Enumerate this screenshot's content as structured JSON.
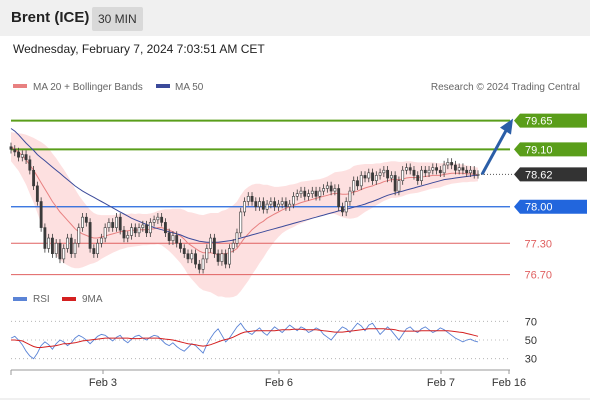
{
  "header": {
    "title": "Brent (ICE)",
    "timeframe": "30 MIN"
  },
  "datetime": "Wednesday, February 7, 2024 7:03:51 AM CET",
  "legend": {
    "ma20_label": "MA 20 + Bollinger Bands",
    "ma50_label": "MA 50",
    "copyright": "Research © 2024 Trading Central",
    "rsi_label": "RSI",
    "rsi_ma_label": "9MA"
  },
  "colors": {
    "candle": "#3a3a3a",
    "bollinger_fill": "#fdd8d8",
    "ma20": "#e88080",
    "ma50": "#3b4a9a",
    "resistance": "#5a9e1a",
    "support": "#2266dd",
    "pivot_red": "#e06060",
    "arrow": "#2b5ea7",
    "current": "#333333",
    "rsi": "#5b84d6",
    "rsi_ma": "#d42020"
  },
  "chart_data": [
    {
      "type": "candlestick",
      "title": "Brent (ICE)",
      "x_tick_labels": [
        "Feb 3",
        "Feb 6",
        "Feb 7",
        "Feb 16"
      ],
      "ylim": [
        76.5,
        79.95
      ],
      "levels": [
        {
          "label": "79.65",
          "value": 79.65,
          "kind": "resistance"
        },
        {
          "label": "79.10",
          "value": 79.1,
          "kind": "resistance"
        },
        {
          "label": "78.62",
          "value": 78.62,
          "kind": "current"
        },
        {
          "label": "78.00",
          "value": 78.0,
          "kind": "support"
        },
        {
          "label": "77.30",
          "value": 77.3,
          "kind": "pivot"
        },
        {
          "label": "76.70",
          "value": 76.7,
          "kind": "pivot"
        }
      ],
      "close": [
        79.1,
        79.05,
        78.95,
        79.0,
        78.9,
        78.7,
        78.4,
        78.1,
        77.6,
        77.2,
        77.4,
        77.1,
        77.3,
        77.0,
        77.2,
        77.4,
        77.1,
        77.3,
        77.6,
        77.8,
        77.7,
        77.2,
        77.1,
        77.3,
        77.4,
        77.6,
        77.7,
        77.6,
        77.8,
        77.55,
        77.4,
        77.45,
        77.6,
        77.5,
        77.6,
        77.65,
        77.5,
        77.7,
        77.75,
        77.8,
        77.7,
        77.5,
        77.35,
        77.45,
        77.3,
        77.2,
        77.1,
        77.0,
        77.1,
        76.9,
        76.8,
        77.0,
        77.2,
        77.4,
        77.1,
        76.95,
        77.1,
        76.9,
        77.2,
        77.3,
        77.5,
        77.9,
        78.1,
        78.2,
        78.1,
        78.0,
        78.1,
        77.95,
        78.05,
        78.1,
        78.0,
        78.05,
        78.1,
        78.0,
        78.05,
        78.2,
        78.25,
        78.3,
        78.2,
        78.25,
        78.3,
        78.2,
        78.3,
        78.35,
        78.4,
        78.3,
        78.35,
        78.0,
        77.9,
        78.1,
        78.3,
        78.5,
        78.4,
        78.6,
        78.55,
        78.65,
        78.5,
        78.6,
        78.65,
        78.7,
        78.55,
        78.6,
        78.3,
        78.5,
        78.7,
        78.75,
        78.7,
        78.6,
        78.5,
        78.7,
        78.65,
        78.7,
        78.75,
        78.7,
        78.65,
        78.8,
        78.85,
        78.8,
        78.7,
        78.75,
        78.7,
        78.65,
        78.7,
        78.62,
        78.62
      ],
      "ma20": [
        79.15,
        79.1,
        79.05,
        78.98,
        78.9,
        78.8,
        78.7,
        78.58,
        78.46,
        78.34,
        78.22,
        78.1,
        78.0,
        77.9,
        77.82,
        77.74,
        77.66,
        77.58,
        77.52,
        77.48,
        77.45,
        77.42,
        77.4,
        77.4,
        77.42,
        77.44,
        77.46,
        77.48,
        77.5,
        77.52,
        77.53,
        77.54,
        77.55,
        77.55,
        77.56,
        77.56,
        77.56,
        77.57,
        77.58,
        77.6,
        77.6,
        77.58,
        77.55,
        77.52,
        77.48,
        77.44,
        77.38,
        77.3,
        77.25,
        77.2,
        77.15,
        77.12,
        77.12,
        77.12,
        77.1,
        77.08,
        77.1,
        77.1,
        77.12,
        77.15,
        77.2,
        77.3,
        77.4,
        77.48,
        77.56,
        77.62,
        77.68,
        77.72,
        77.78,
        77.82,
        77.86,
        77.9,
        77.94,
        77.97,
        78.0,
        78.02,
        78.05,
        78.08,
        78.1,
        78.12,
        78.14,
        78.16,
        78.18,
        78.2,
        78.22,
        78.24,
        78.26,
        78.25,
        78.24,
        78.24,
        78.25,
        78.28,
        78.3,
        78.33,
        78.36,
        78.38,
        78.4,
        78.43,
        78.45,
        78.48,
        78.5,
        78.52,
        78.52,
        78.52,
        78.53,
        78.55,
        78.56,
        78.56,
        78.56,
        78.57,
        78.58,
        78.59,
        78.6,
        78.6,
        78.6,
        78.62,
        78.63,
        78.64,
        78.64,
        78.64,
        78.64,
        78.63,
        78.63,
        78.62,
        78.62
      ],
      "ma50": [
        79.5,
        79.45,
        79.38,
        79.3,
        79.22,
        79.15,
        79.08,
        79.0,
        78.94,
        78.88,
        78.82,
        78.76,
        78.7,
        78.64,
        78.58,
        78.52,
        78.46,
        78.4,
        78.35,
        78.3,
        78.26,
        78.22,
        78.18,
        78.14,
        78.1,
        78.06,
        78.02,
        77.98,
        77.94,
        77.9,
        77.86,
        77.82,
        77.78,
        77.75,
        77.72,
        77.69,
        77.66,
        77.63,
        77.6,
        77.58,
        77.56,
        77.54,
        77.52,
        77.5,
        77.48,
        77.46,
        77.43,
        77.4,
        77.38,
        77.36,
        77.34,
        77.33,
        77.32,
        77.32,
        77.32,
        77.32,
        77.33,
        77.34,
        77.35,
        77.36,
        77.38,
        77.4,
        77.42,
        77.44,
        77.46,
        77.48,
        77.5,
        77.52,
        77.54,
        77.56,
        77.58,
        77.6,
        77.62,
        77.64,
        77.66,
        77.68,
        77.7,
        77.72,
        77.74,
        77.76,
        77.78,
        77.8,
        77.82,
        77.84,
        77.86,
        77.88,
        77.9,
        77.92,
        77.93,
        77.95,
        77.97,
        77.99,
        78.01,
        78.03,
        78.05,
        78.08,
        78.1,
        78.13,
        78.16,
        78.19,
        78.22,
        78.24,
        78.26,
        78.28,
        78.3,
        78.32,
        78.34,
        78.36,
        78.38,
        78.4,
        78.42,
        78.44,
        78.46,
        78.48,
        78.5,
        78.52,
        78.53,
        78.54,
        78.55,
        78.56,
        78.57,
        78.58,
        78.59,
        78.6,
        78.6
      ],
      "bb_width": [
        0.28,
        0.32,
        0.36,
        0.42,
        0.48,
        0.55,
        0.62,
        0.7,
        0.78,
        0.85,
        0.9,
        0.92,
        0.93,
        0.92,
        0.9,
        0.86,
        0.82,
        0.76,
        0.7,
        0.64,
        0.58,
        0.52,
        0.48,
        0.45,
        0.42,
        0.4,
        0.38,
        0.36,
        0.35,
        0.34,
        0.33,
        0.32,
        0.32,
        0.31,
        0.31,
        0.3,
        0.3,
        0.3,
        0.31,
        0.32,
        0.34,
        0.37,
        0.4,
        0.44,
        0.48,
        0.52,
        0.56,
        0.6,
        0.64,
        0.67,
        0.7,
        0.72,
        0.74,
        0.76,
        0.78,
        0.8,
        0.82,
        0.84,
        0.86,
        0.88,
        0.9,
        0.92,
        0.92,
        0.9,
        0.86,
        0.82,
        0.76,
        0.7,
        0.64,
        0.58,
        0.52,
        0.48,
        0.45,
        0.43,
        0.42,
        0.41,
        0.4,
        0.4,
        0.39,
        0.38,
        0.37,
        0.36,
        0.35,
        0.35,
        0.36,
        0.38,
        0.4,
        0.42,
        0.44,
        0.46,
        0.48,
        0.5,
        0.5,
        0.48,
        0.46,
        0.44,
        0.42,
        0.4,
        0.38,
        0.37,
        0.36,
        0.35,
        0.35,
        0.34,
        0.33,
        0.32,
        0.31,
        0.3,
        0.29,
        0.28,
        0.27,
        0.26,
        0.25,
        0.24,
        0.23,
        0.22,
        0.21,
        0.2,
        0.19,
        0.18,
        0.17,
        0.16,
        0.15,
        0.14,
        0.13
      ],
      "forecast_arrow": {
        "from": 78.62,
        "to": 79.65
      }
    },
    {
      "type": "line",
      "title": "RSI",
      "ylim": [
        20,
        80
      ],
      "y_ticks": [
        30,
        50,
        70
      ],
      "rsi": [
        52,
        54,
        50,
        45,
        38,
        33,
        30,
        36,
        44,
        48,
        45,
        40,
        46,
        50,
        48,
        44,
        47,
        52,
        55,
        53,
        50,
        46,
        50,
        54,
        56,
        55,
        52,
        49,
        53,
        55,
        50,
        47,
        51,
        54,
        55,
        52,
        50,
        53,
        55,
        54,
        50,
        46,
        44,
        47,
        43,
        40,
        38,
        42,
        46,
        44,
        40,
        36,
        45,
        52,
        58,
        62,
        55,
        48,
        52,
        58,
        64,
        68,
        62,
        58,
        56,
        60,
        63,
        58,
        55,
        60,
        64,
        61,
        58,
        62,
        66,
        63,
        60,
        64,
        62,
        58,
        60,
        63,
        61,
        56,
        53,
        50,
        55,
        60,
        64,
        62,
        58,
        63,
        68,
        65,
        60,
        66,
        68,
        62,
        56,
        60,
        64,
        60,
        55,
        50,
        56,
        62,
        64,
        60,
        58,
        62,
        64,
        61,
        58,
        60,
        63,
        61,
        58,
        55,
        52,
        50,
        48,
        50,
        51,
        49,
        48
      ],
      "ma9": [
        50,
        50,
        49.5,
        49,
        47,
        45,
        43,
        42,
        42,
        42.5,
        43,
        43.5,
        44,
        45,
        46,
        46,
        46.5,
        47,
        48,
        49,
        49.5,
        50,
        50.5,
        51,
        51.5,
        52,
        52,
        52,
        52,
        52,
        52,
        52,
        51.5,
        51.5,
        51.5,
        52,
        52,
        52,
        52,
        52,
        51.5,
        51,
        50.5,
        50,
        49,
        48,
        47,
        46,
        45.5,
        45,
        44,
        43.5,
        44,
        45,
        46.5,
        48,
        49.5,
        50.5,
        51.5,
        53,
        55,
        57,
        58.5,
        59,
        59.5,
        60,
        60,
        60,
        60,
        60,
        60,
        60.5,
        61,
        61,
        61,
        61.5,
        61.5,
        61.5,
        61,
        61,
        61,
        61,
        60.5,
        60,
        59.5,
        59,
        58.5,
        58.5,
        58.5,
        59,
        59.5,
        60,
        60.5,
        61,
        61.5,
        62,
        62,
        62,
        62,
        62,
        61.5,
        61.5,
        61,
        60,
        59.5,
        59.5,
        59.5,
        59.5,
        59.5,
        60,
        60,
        60,
        60,
        60,
        60,
        60,
        60,
        59.5,
        59,
        58.5,
        58,
        57,
        56,
        55,
        54
      ]
    }
  ]
}
